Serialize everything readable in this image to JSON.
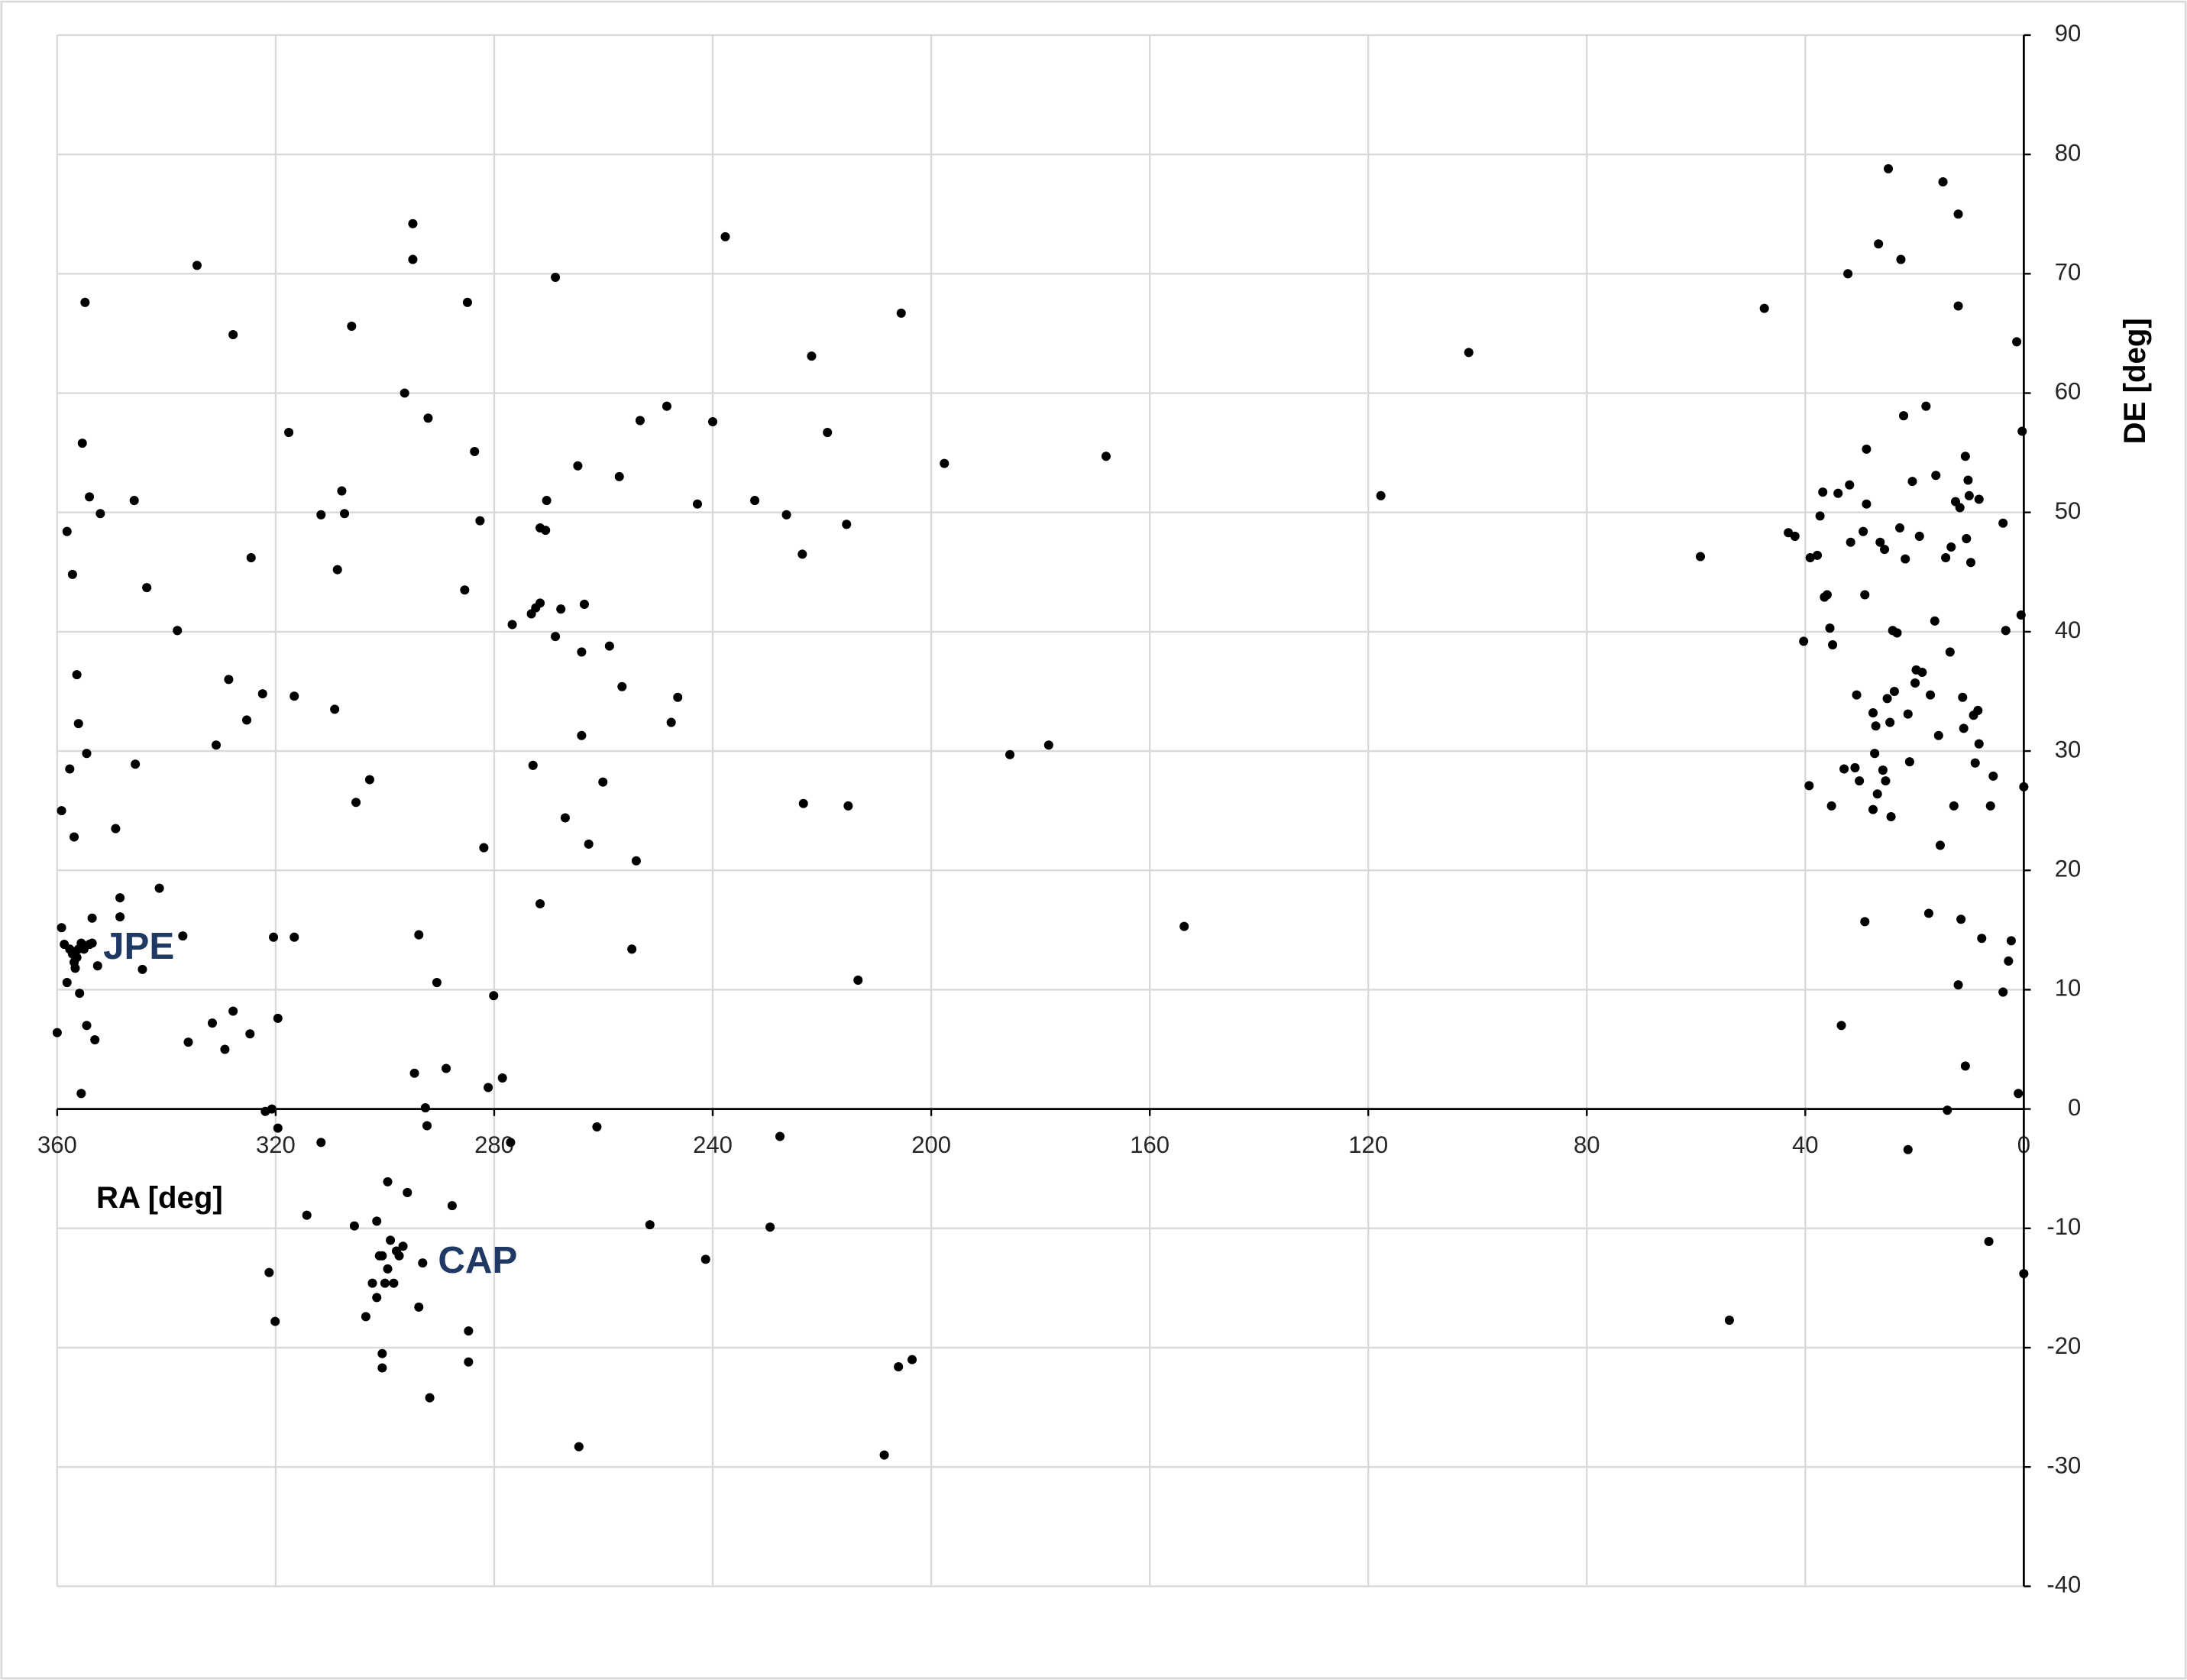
{
  "chart_data": {
    "type": "scatter",
    "x_label": "RA [deg]",
    "y_label": "DE [deg]",
    "annotations": [
      "JPE",
      "CAP"
    ],
    "color": "#000000",
    "grid": true,
    "xlim": [
      360,
      0
    ],
    "ylim": [
      -40,
      90
    ],
    "xticks": [
      360,
      320,
      280,
      240,
      200,
      160,
      120,
      80,
      40,
      0
    ],
    "yticks": [
      -40,
      -30,
      -20,
      -10,
      0,
      10,
      20,
      30,
      40,
      50,
      60,
      70,
      80,
      90
    ],
    "x": [
      359.2,
      358.7,
      358.2,
      357.7,
      357.2,
      356.9,
      356.7,
      356.4,
      356.1,
      355.9,
      355.6,
      355.1,
      354.6,
      354.1,
      353.6,
      353.1,
      352.6,
      353.6,
      360.0,
      359.2,
      358.2,
      357.7,
      357.2,
      356.9,
      356.4,
      356.1,
      355.6,
      355.4,
      354.9,
      354.6,
      354.1,
      352.1,
      348.5,
      349.3,
      348.5,
      345.9,
      345.7,
      344.4,
      343.6,
      341.3,
      338.0,
      337.0,
      336.0,
      334.4,
      331.6,
      330.9,
      329.3,
      328.6,
      327.8,
      327.8,
      325.3,
      324.7,
      324.5,
      322.4,
      321.9,
      321.2,
      320.7,
      320.1,
      319.6,
      319.6,
      320.4,
      317.6,
      316.6,
      316.6,
      314.3,
      311.7,
      311.7,
      309.2,
      308.7,
      307.9,
      307.4,
      306.1,
      305.6,
      305.3,
      303.5,
      302.8,
      302.3,
      301.5,
      301.5,
      301.0,
      300.5,
      300.5,
      300.5,
      300.0,
      299.5,
      299.5,
      299.0,
      298.4,
      297.9,
      297.4,
      296.7,
      296.4,
      295.9,
      294.9,
      294.9,
      294.6,
      293.8,
      293.8,
      293.1,
      292.6,
      292.3,
      292.1,
      291.8,
      290.5,
      288.8,
      287.7,
      284.9,
      284.7,
      284.7,
      285.4,
      283.6,
      282.6,
      281.9,
      281.1,
      280.1,
      278.5,
      277.0,
      276.7,
      273.2,
      272.9,
      272.4,
      271.6,
      271.6,
      271.6,
      270.6,
      270.4,
      268.8,
      267.8,
      268.8,
      267.0,
      264.7,
      264.5,
      264.0,
      264.0,
      263.5,
      262.7,
      261.2,
      260.1,
      258.9,
      257.1,
      256.6,
      254.8,
      254.0,
      253.3,
      251.5,
      248.4,
      247.6,
      246.4,
      242.8,
      241.3,
      240.0,
      237.7,
      232.3,
      229.5,
      227.7,
      226.5,
      223.6,
      223.4,
      221.9,
      219.0,
      215.5,
      215.2,
      213.4,
      208.6,
      206.0,
      205.5,
      203.5,
      197.6,
      185.6,
      178.5,
      168.0,
      153.7,
      117.7,
      101.6,
      59.2,
      53.9,
      47.5,
      43.1,
      41.9,
      40.3,
      39.3,
      39.1,
      37.8,
      37.3,
      36.8,
      36.5,
      36.0,
      35.5,
      35.2,
      35.0,
      34.0,
      33.4,
      32.9,
      32.2,
      31.9,
      31.7,
      30.9,
      30.6,
      30.1,
      29.4,
      29.1,
      29.1,
      28.8,
      28.8,
      27.6,
      27.6,
      27.3,
      26.8,
      27.1,
      26.6,
      26.3,
      25.8,
      25.5,
      25.3,
      25.0,
      24.8,
      24.5,
      24.3,
      24.0,
      23.7,
      23.2,
      22.7,
      22.5,
      22.0,
      21.7,
      21.2,
      20.9,
      20.4,
      19.9,
      19.7,
      19.1,
      18.6,
      17.9,
      17.4,
      17.1,
      16.3,
      16.1,
      15.6,
      15.3,
      14.8,
      14.3,
      14.0,
      13.5,
      13.3,
      12.8,
      12.5,
      12.0,
      12.0,
      11.7,
      11.5,
      11.2,
      11.0,
      10.7,
      10.5,
      10.2,
      10.0,
      9.7,
      9.2,
      8.9,
      8.4,
      8.2,
      8.2,
      7.7,
      6.4,
      6.1,
      5.6,
      3.8,
      3.8,
      3.3,
      2.8,
      2.3,
      1.3,
      1.0,
      0.5,
      0.3,
      0.0,
      0.0,
      12.0,
      10.7,
      21.2
    ],
    "values": [
      15.2,
      13.8,
      10.6,
      13.4,
      13.0,
      12.3,
      11.8,
      12.7,
      13.4,
      9.7,
      13.9,
      13.4,
      7.0,
      13.8,
      16.0,
      5.8,
      12.0,
      13.9,
      6.4,
      25.0,
      48.4,
      28.5,
      44.8,
      22.8,
      36.4,
      32.3,
      1.3,
      55.8,
      67.6,
      29.8,
      51.3,
      49.9,
      16.1,
      23.5,
      17.7,
      51.0,
      28.9,
      11.7,
      43.7,
      18.5,
      40.1,
      14.5,
      5.6,
      70.7,
      7.2,
      30.5,
      5.0,
      36.0,
      8.2,
      64.9,
      32.6,
      6.3,
      46.2,
      34.8,
      -0.2,
      -13.7,
      0.0,
      -17.8,
      7.6,
      -1.6,
      14.4,
      56.7,
      34.6,
      14.4,
      -8.9,
      -2.8,
      49.8,
      33.5,
      45.2,
      51.8,
      49.9,
      65.6,
      -9.8,
      25.7,
      -17.4,
      27.6,
      -14.6,
      -9.4,
      -15.8,
      -12.3,
      -12.3,
      -20.5,
      -21.7,
      -14.6,
      -6.1,
      -13.4,
      -11.0,
      -14.6,
      -11.9,
      -12.3,
      -11.5,
      60.0,
      -7.0,
      74.2,
      71.2,
      3.0,
      14.6,
      -16.6,
      -12.9,
      0.1,
      -1.4,
      57.9,
      -24.2,
      10.6,
      3.4,
      -8.1,
      67.6,
      -18.6,
      -21.2,
      43.5,
      55.1,
      49.3,
      21.9,
      1.8,
      9.5,
      2.6,
      -2.8,
      40.6,
      41.5,
      28.8,
      42.0,
      42.4,
      48.7,
      17.2,
      48.5,
      51.0,
      39.6,
      41.9,
      69.7,
      24.4,
      53.9,
      -28.3,
      38.3,
      31.3,
      42.3,
      22.2,
      -1.5,
      27.4,
      38.8,
      53.0,
      35.4,
      13.4,
      20.8,
      57.7,
      -9.7,
      58.9,
      32.4,
      34.5,
      50.7,
      -12.6,
      57.6,
      73.1,
      51.0,
      -9.9,
      -2.3,
      49.8,
      46.5,
      25.6,
      63.1,
      56.7,
      49.0,
      25.4,
      10.8,
      -29.0,
      -21.6,
      66.7,
      -21.0,
      54.1,
      29.7,
      30.5,
      54.7,
      15.3,
      51.4,
      63.4,
      46.3,
      -17.7,
      67.1,
      48.3,
      48.0,
      39.2,
      27.1,
      46.2,
      46.4,
      49.7,
      51.7,
      42.9,
      43.1,
      40.3,
      25.4,
      38.9,
      51.6,
      7.0,
      28.5,
      70.0,
      52.3,
      47.5,
      28.6,
      34.7,
      27.5,
      48.4,
      15.7,
      43.1,
      55.3,
      50.7,
      25.1,
      33.2,
      29.8,
      26.4,
      32.1,
      72.5,
      47.5,
      28.4,
      46.9,
      27.5,
      34.4,
      78.8,
      32.4,
      24.5,
      40.1,
      35.0,
      39.9,
      48.7,
      71.2,
      58.1,
      46.1,
      33.1,
      29.1,
      52.6,
      35.7,
      36.8,
      48.0,
      36.6,
      58.9,
      16.4,
      34.7,
      40.9,
      53.1,
      31.3,
      22.1,
      77.7,
      46.2,
      -0.1,
      38.3,
      47.1,
      25.4,
      50.9,
      75.0,
      67.3,
      50.4,
      15.9,
      34.5,
      31.9,
      54.7,
      47.8,
      52.7,
      51.4,
      45.8,
      33.0,
      29.0,
      33.4,
      51.1,
      30.6,
      14.3,
      -11.1,
      25.4,
      27.9,
      9.8,
      49.1,
      40.1,
      12.4,
      14.1,
      64.3,
      1.3,
      41.4,
      56.8,
      27.0,
      -13.8,
      10.4,
      3.6,
      -3.4
    ]
  }
}
